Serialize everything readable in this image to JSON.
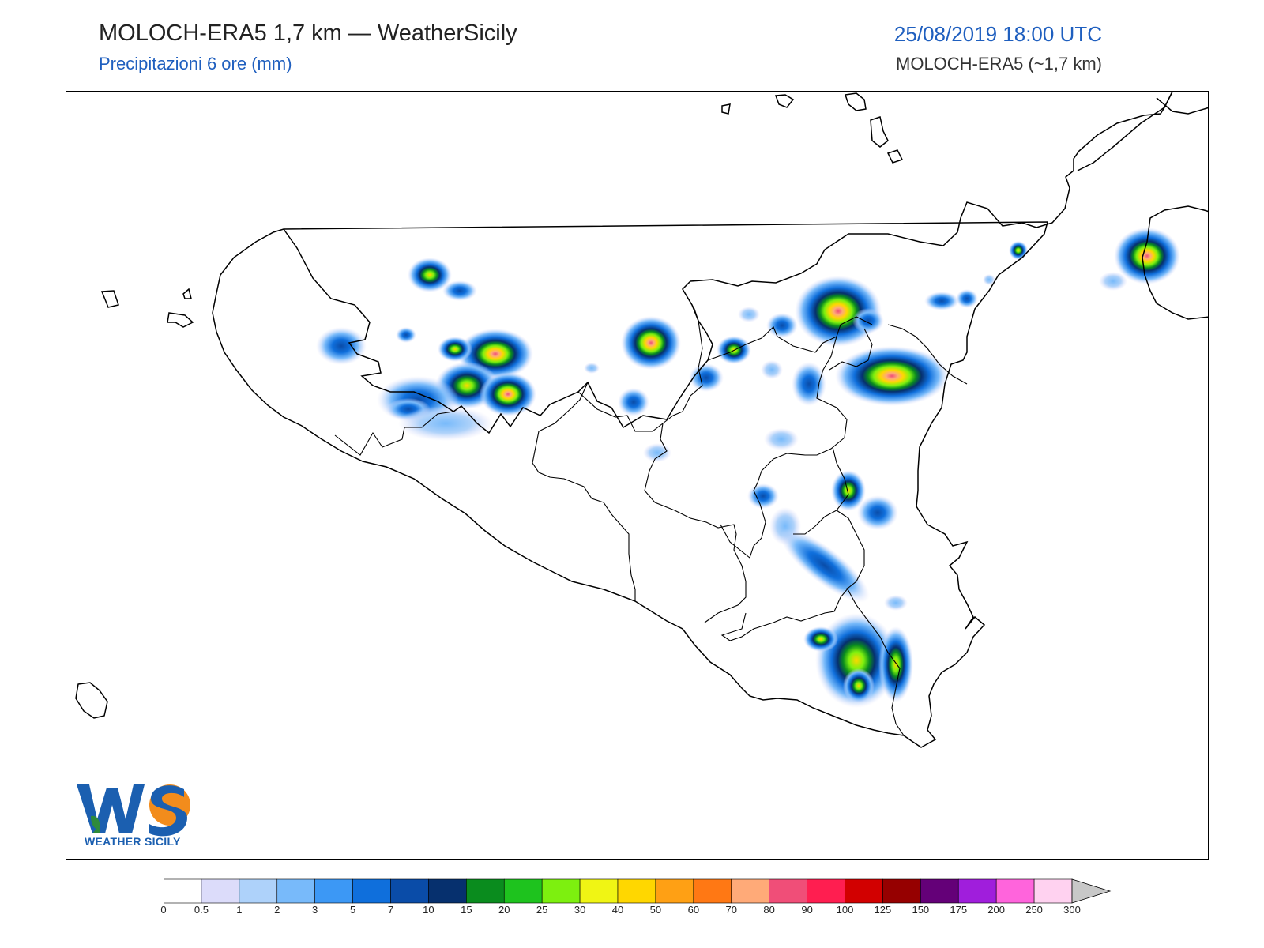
{
  "header": {
    "title": "MOLOCH-ERA5 1,7 km — WeatherSicily",
    "subtitle": "Precipitazioni 6 ore (mm)",
    "datetime": "25/08/2019 18:00 UTC",
    "model": "MOLOCH-ERA5 (~1,7 km)"
  },
  "logo": {
    "text": "WEATHER SICILY",
    "letters": "WS",
    "colors": {
      "blue": "#1b5fb0",
      "green": "#2e8b3a",
      "orange": "#f28c1c"
    }
  },
  "map": {
    "region": "Sicily",
    "variable": "6h precipitation",
    "peak_areas": [
      "north-west (Palermo province)",
      "north-central",
      "Nebrodi",
      "Etna area",
      "south-east (Hyblaean)",
      "Calabria tip"
    ]
  },
  "colorbar": {
    "ticks": [
      "0",
      "0.5",
      "1",
      "2",
      "3",
      "5",
      "7",
      "10",
      "15",
      "20",
      "25",
      "30",
      "40",
      "50",
      "60",
      "70",
      "80",
      "90",
      "100",
      "125",
      "150",
      "175",
      "200",
      "250",
      "300"
    ],
    "colors": [
      "#ffffff",
      "#dcdcfa",
      "#aed2fa",
      "#78bafa",
      "#3c98f5",
      "#0f6fdc",
      "#0a4ca8",
      "#06306e",
      "#0a8c1e",
      "#1ec31e",
      "#7df00f",
      "#f0f514",
      "#ffd700",
      "#ffa014",
      "#ff7814",
      "#ffaa78",
      "#f04e78",
      "#ff1e50",
      "#d20000",
      "#960000",
      "#640078",
      "#a01edc",
      "#ff64dc",
      "#ffd2f0"
    ],
    "extend_color": "#c8c8c8"
  }
}
